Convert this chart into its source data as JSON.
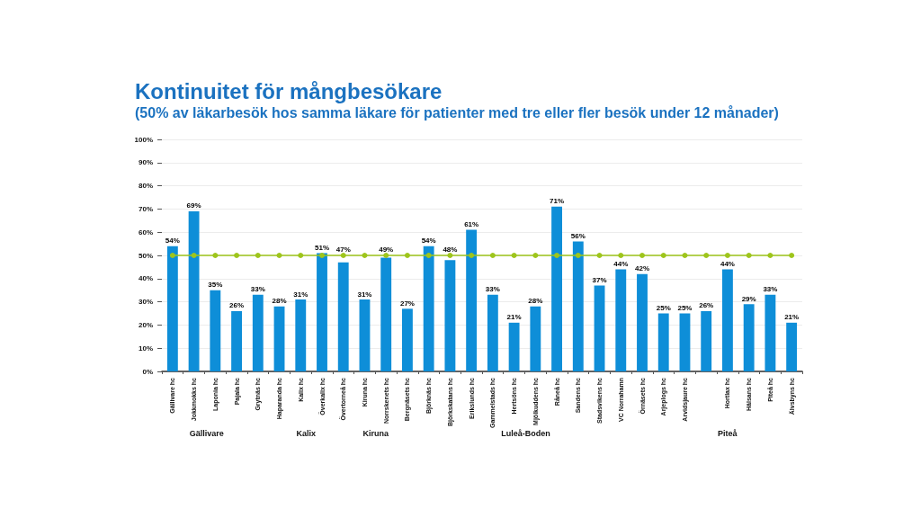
{
  "chart_data": {
    "type": "bar",
    "title": "Kontinuitet för mångbesökare",
    "subtitle": "(50% av läkarbesök hos samma läkare för patienter med tre eller fler besök under 12 månader)",
    "categories": [
      "Gällivare hc",
      "Jokkmokks hc",
      "Laponia hc",
      "Pajala hc",
      "Grytnäs hc",
      "Haparanda hc",
      "Kalix hc",
      "Överkalix hc",
      "Övertorneå hc",
      "Kiruna hc",
      "Norrskenets hc",
      "Bergnäsets hc",
      "Björknäs hc",
      "Björkskatans hc",
      "Erikslunds hc",
      "Gammelstads hc",
      "Hertsöns hc",
      "Mjölkuddens hc",
      "Råneå hc",
      "Sandens hc",
      "Stadsvikens hc",
      "VC Norrahamn",
      "Örnäsets hc",
      "Arjeplogs hc",
      "Arvidsjaure hc",
      null,
      "Hortlax hc",
      "Hälsans hc",
      "Piteå hc",
      "Älvsbyns hc"
    ],
    "series": [
      {
        "color": "#0e8ed8",
        "values": [
          54,
          69,
          35,
          26,
          33,
          28,
          31,
          51,
          47,
          31,
          49,
          27,
          54,
          48,
          61,
          33,
          21,
          28,
          71,
          56,
          37,
          44,
          42,
          25,
          25,
          26,
          44,
          29,
          33,
          21
        ],
        "value_labels": [
          "54%",
          "69%",
          "35%",
          "26%",
          "33%",
          "28%",
          "31%",
          "51%",
          "47%",
          "31%",
          "49%",
          "27%",
          "54%",
          "48%",
          "61%",
          "33%",
          "21%",
          "28%",
          "71%",
          "56%",
          "37%",
          "44%",
          "42%",
          "25%",
          "25%",
          "26%",
          "44%",
          "29%",
          "33%",
          "21%"
        ]
      },
      {
        "type": "line",
        "color": "#9ec51c",
        "values": [
          50,
          50,
          50,
          50,
          50,
          50,
          50,
          50,
          50,
          50,
          50,
          50,
          50,
          50,
          50,
          50,
          50,
          50,
          50,
          50,
          50,
          50,
          50,
          50,
          50,
          50,
          50,
          50,
          50,
          50
        ]
      }
    ],
    "ylim": [
      0,
      100
    ],
    "yticks": [
      {
        "value": 0,
        "label": "0%"
      },
      {
        "value": 10,
        "label": "10%"
      },
      {
        "value": 20,
        "label": "20%"
      },
      {
        "value": 30,
        "label": "30%"
      },
      {
        "value": 40,
        "label": "40%"
      },
      {
        "value": 50,
        "label": "50%"
      },
      {
        "value": 60,
        "label": "60%"
      },
      {
        "value": 70,
        "label": "70%"
      },
      {
        "value": 80,
        "label": "80%"
      },
      {
        "value": 90,
        "label": "90%"
      },
      {
        "value": 100,
        "label": "100%"
      }
    ],
    "grid": "y",
    "marker": "circle",
    "annotations": [
      "Gällivare",
      "Kalix",
      "Kiruna",
      "Luleå-Boden",
      "Piteå"
    ]
  }
}
